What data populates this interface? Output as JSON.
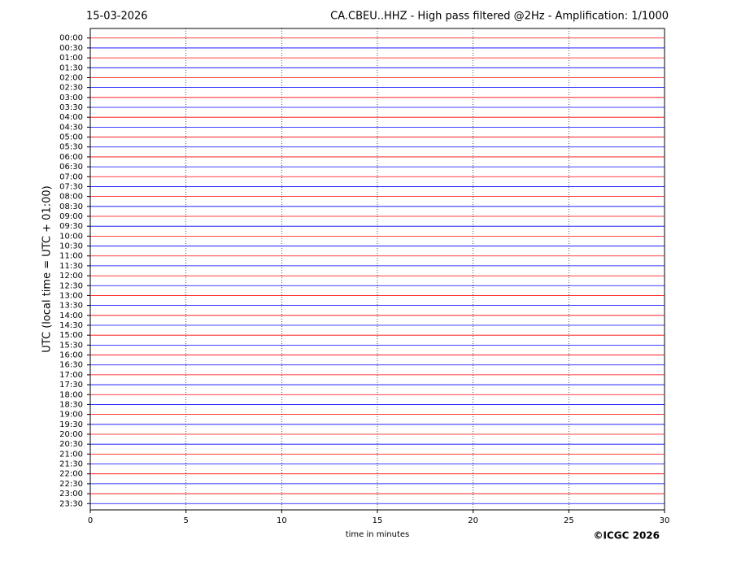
{
  "chart_data": {
    "type": "helicorder",
    "date": "15-03-2026",
    "title": "CA.CBEU..HHZ - High pass filtered @2Hz - Amplification: 1/1000",
    "xlabel": "time in minutes",
    "ylabel": "UTC (local time = UTC + 01:00)",
    "credit": "©ICGC 2026",
    "rows": [
      "00:00",
      "00:30",
      "01:00",
      "01:30",
      "02:00",
      "02:30",
      "03:00",
      "03:30",
      "04:00",
      "04:30",
      "05:00",
      "05:30",
      "06:00",
      "06:30",
      "07:00",
      "07:30",
      "08:00",
      "08:30",
      "09:00",
      "09:30",
      "10:00",
      "10:30",
      "11:00",
      "11:30",
      "12:00",
      "12:30",
      "13:00",
      "13:30",
      "14:00",
      "14:30",
      "15:00",
      "15:30",
      "16:00",
      "16:30",
      "17:00",
      "17:30",
      "18:00",
      "18:30",
      "19:00",
      "19:30",
      "20:00",
      "20:30",
      "21:00",
      "21:30",
      "22:00",
      "22:30",
      "23:00",
      "23:30"
    ],
    "colors": [
      "#ff0000",
      "#0000ff"
    ],
    "xlim": [
      0,
      30
    ],
    "xticks": [
      0,
      5,
      10,
      15,
      20,
      25,
      30
    ],
    "grid": true
  }
}
